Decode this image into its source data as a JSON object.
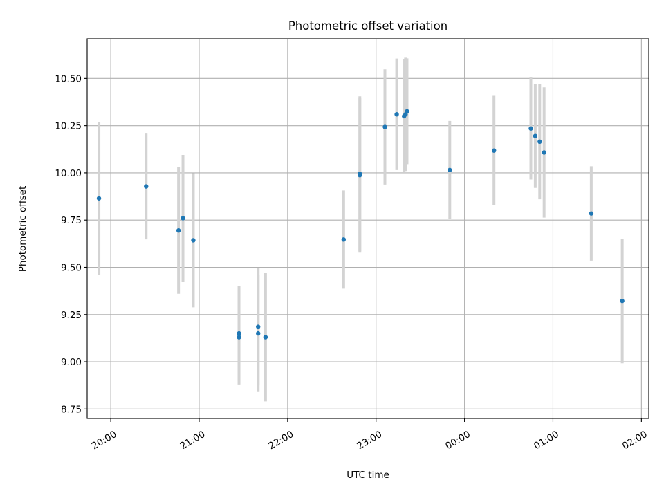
{
  "chart_data": {
    "type": "scatter",
    "title": "Photometric offset variation",
    "xlabel": "UTC time",
    "ylabel": "Photometric offset",
    "grid": true,
    "legend": "none",
    "x_axis_type": "time",
    "xlim": [
      "19:44",
      "02:05"
    ],
    "ylim": [
      8.7,
      10.71
    ],
    "x_ticks": [
      "20:00",
      "21:00",
      "22:00",
      "23:00",
      "00:00",
      "01:00",
      "02:00"
    ],
    "y_ticks": [
      "8.75",
      "9.00",
      "9.25",
      "9.50",
      "9.75",
      "10.00",
      "10.25",
      "10.50"
    ],
    "colors": {
      "points": "#1f77b4",
      "errorbars": "#d3d3d3",
      "grid": "#b0b0b0"
    },
    "series": [
      {
        "points": [
          {
            "x": "19:52",
            "y": 9.865,
            "err": 0.405
          },
          {
            "x": "20:24",
            "y": 9.928,
            "err": 0.28
          },
          {
            "x": "20:46",
            "y": 9.695,
            "err": 0.335
          },
          {
            "x": "20:49",
            "y": 9.76,
            "err": 0.335
          },
          {
            "x": "20:56",
            "y": 9.643,
            "err": 0.355
          },
          {
            "x": "21:27",
            "y": 9.15,
            "err": 0.25
          },
          {
            "x": "21:27",
            "y": 9.13,
            "err": 0.25
          },
          {
            "x": "21:40",
            "y": 9.15,
            "err": 0.31
          },
          {
            "x": "21:40",
            "y": 9.185,
            "err": 0.31
          },
          {
            "x": "21:45",
            "y": 9.13,
            "err": 0.34
          },
          {
            "x": "22:38",
            "y": 9.647,
            "err": 0.26
          },
          {
            "x": "22:49",
            "y": 9.988,
            "err": 0.41
          },
          {
            "x": "22:49",
            "y": 9.995,
            "err": 0.41
          },
          {
            "x": "23:06",
            "y": 10.243,
            "err": 0.305
          },
          {
            "x": "23:14",
            "y": 10.31,
            "err": 0.295
          },
          {
            "x": "23:19",
            "y": 10.3,
            "err": 0.3
          },
          {
            "x": "23:20",
            "y": 10.31,
            "err": 0.3
          },
          {
            "x": "23:21",
            "y": 10.326,
            "err": 0.28
          },
          {
            "x": "23:50",
            "y": 10.015,
            "err": 0.26
          },
          {
            "x": "00:20",
            "y": 10.118,
            "err": 0.29
          },
          {
            "x": "00:45",
            "y": 10.235,
            "err": 0.27
          },
          {
            "x": "00:48",
            "y": 10.195,
            "err": 0.275
          },
          {
            "x": "00:51",
            "y": 10.165,
            "err": 0.305
          },
          {
            "x": "00:54",
            "y": 10.108,
            "err": 0.345
          },
          {
            "x": "01:26",
            "y": 9.785,
            "err": 0.25
          },
          {
            "x": "01:47",
            "y": 9.322,
            "err": 0.33
          }
        ]
      }
    ]
  }
}
